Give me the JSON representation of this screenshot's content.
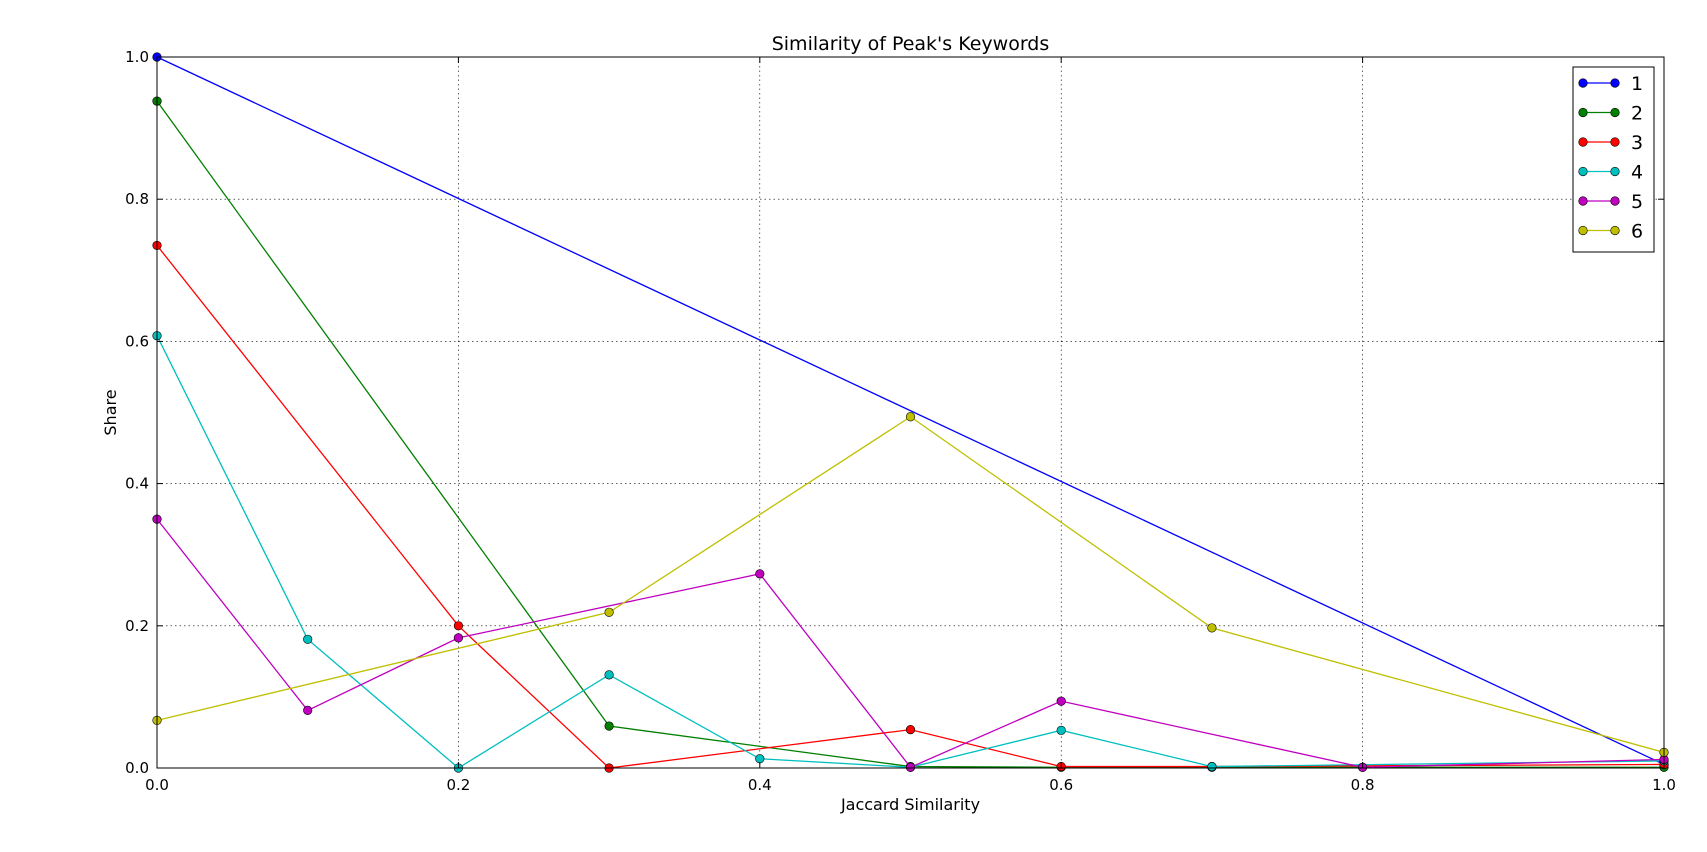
{
  "chart_data": {
    "type": "line",
    "title": "Similarity of Peak's Keywords",
    "xlabel": "Jaccard Similarity",
    "ylabel": "Share",
    "xlim": [
      0.0,
      1.0
    ],
    "ylim": [
      0.0,
      1.0
    ],
    "xticks": [
      "0.0",
      "0.2",
      "0.4",
      "0.6",
      "0.8",
      "1.0"
    ],
    "yticks": [
      "0.0",
      "0.2",
      "0.4",
      "0.6",
      "0.8",
      "1.0"
    ],
    "grid": true,
    "legend_position": "top-right",
    "series": [
      {
        "name": "1",
        "color": "#0000ff",
        "x": [
          0.0,
          1.0
        ],
        "y": [
          1.0,
          0.005
        ]
      },
      {
        "name": "2",
        "color": "#007f00",
        "x": [
          0.0,
          0.3,
          0.5,
          0.6,
          0.7,
          0.8,
          1.0
        ],
        "y": [
          0.938,
          0.059,
          0.002,
          0.001,
          0.001,
          0.001,
          0.001
        ]
      },
      {
        "name": "3",
        "color": "#ff0000",
        "x": [
          0.0,
          0.2,
          0.3,
          0.5,
          0.6,
          0.7,
          1.0
        ],
        "y": [
          0.735,
          0.2,
          0.0,
          0.054,
          0.002,
          0.002,
          0.005
        ]
      },
      {
        "name": "4",
        "color": "#00bfbf",
        "x": [
          0.0,
          0.1,
          0.2,
          0.3,
          0.4,
          0.5,
          0.6,
          0.7,
          1.0
        ],
        "y": [
          0.608,
          0.181,
          0.0,
          0.131,
          0.013,
          0.001,
          0.053,
          0.002,
          0.01
        ]
      },
      {
        "name": "5",
        "color": "#bf00bf",
        "x": [
          0.0,
          0.1,
          0.2,
          0.4,
          0.5,
          0.6,
          0.8,
          1.0
        ],
        "y": [
          0.35,
          0.081,
          0.183,
          0.273,
          0.001,
          0.094,
          0.001,
          0.012
        ]
      },
      {
        "name": "6",
        "color": "#bfbf00",
        "x": [
          0.0,
          0.3,
          0.5,
          0.7,
          1.0
        ],
        "y": [
          0.067,
          0.219,
          0.494,
          0.197,
          0.022
        ]
      }
    ]
  }
}
